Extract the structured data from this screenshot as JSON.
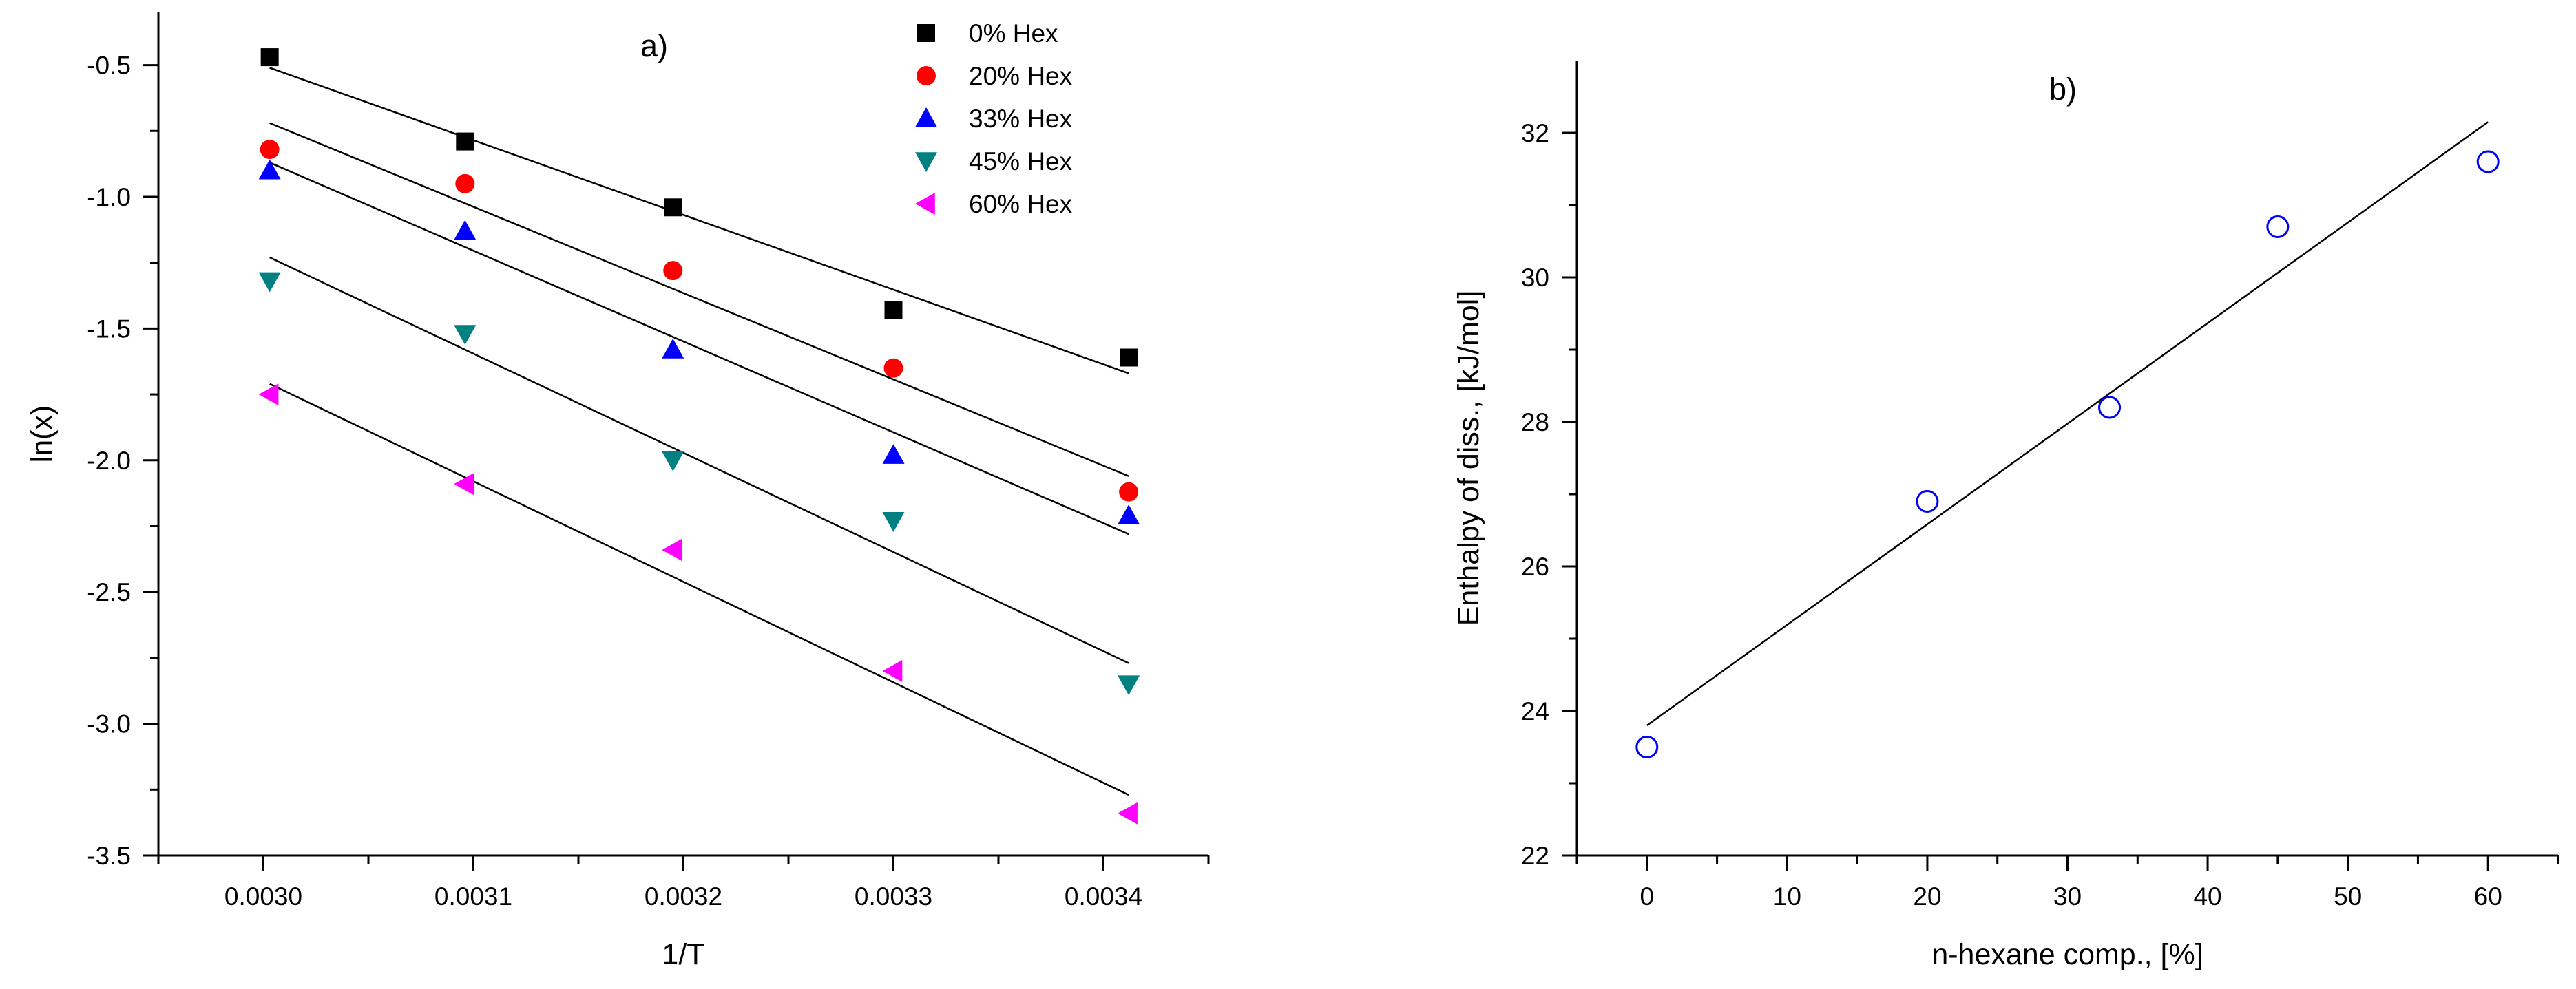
{
  "chart_data": [
    {
      "type": "scatter",
      "panel_label": "a)",
      "xlabel": "1/T",
      "ylabel": "ln(x)",
      "xlim": [
        0.00295,
        0.00345
      ],
      "ylim": [
        -3.5,
        -0.3
      ],
      "xticks": [
        "0.0030",
        "0.0031",
        "0.0032",
        "0.0033",
        "0.0034"
      ],
      "xtick_values": [
        0.003,
        0.0031,
        0.0032,
        0.0033,
        0.0034
      ],
      "yticks": [
        "-0.5",
        "-1.0",
        "-1.5",
        "-2.0",
        "-2.5",
        "-3.0",
        "-3.5"
      ],
      "ytick_values": [
        -0.5,
        -1.0,
        -1.5,
        -2.0,
        -2.5,
        -3.0,
        -3.5
      ],
      "legend_position": "top-right",
      "x": [
        0.003003,
        0.003096,
        0.003195,
        0.0033,
        0.003412
      ],
      "series": [
        {
          "name": "0% Hex",
          "marker": "square",
          "color": "#000000",
          "values": [
            -0.47,
            -0.79,
            -1.04,
            -1.43,
            -1.61
          ],
          "fit": [
            [
              0.003003,
              -0.51
            ],
            [
              0.003412,
              -1.67
            ]
          ]
        },
        {
          "name": "20% Hex",
          "marker": "circle",
          "color": "#ff0000",
          "values": [
            -0.82,
            -0.95,
            -1.28,
            -1.65,
            -2.12
          ],
          "fit": [
            [
              0.003003,
              -0.72
            ],
            [
              0.003412,
              -2.06
            ]
          ]
        },
        {
          "name": "33% Hex",
          "marker": "triangle-up",
          "color": "#0000ff",
          "values": [
            -0.9,
            -1.13,
            -1.58,
            -1.98,
            -2.21
          ],
          "fit": [
            [
              0.003003,
              -0.87
            ],
            [
              0.003412,
              -2.28
            ]
          ]
        },
        {
          "name": "45% Hex",
          "marker": "triangle-down",
          "color": "#008080",
          "values": [
            -1.32,
            -1.52,
            -2.0,
            -2.23,
            -2.85
          ],
          "fit": [
            [
              0.003003,
              -1.23
            ],
            [
              0.003412,
              -2.77
            ]
          ]
        },
        {
          "name": "60% Hex",
          "marker": "triangle-left",
          "color": "#ff00ff",
          "values": [
            -1.75,
            -2.09,
            -2.34,
            -2.8,
            -3.34
          ],
          "fit": [
            [
              0.003003,
              -1.71
            ],
            [
              0.003412,
              -3.27
            ]
          ]
        }
      ]
    },
    {
      "type": "scatter",
      "panel_label": "b)",
      "xlabel": "n-hexane comp., [%]",
      "ylabel": "Enthalpy of diss., [kJ/mol]",
      "xlim": [
        -5,
        65
      ],
      "ylim": [
        22,
        33
      ],
      "xticks": [
        "0",
        "10",
        "20",
        "30",
        "40",
        "50",
        "60"
      ],
      "xtick_values": [
        0,
        10,
        20,
        30,
        40,
        50,
        60
      ],
      "yticks": [
        "22",
        "24",
        "26",
        "28",
        "30",
        "32"
      ],
      "ytick_values": [
        22,
        24,
        26,
        28,
        30,
        32
      ],
      "series": [
        {
          "name": "Enthalpy",
          "marker": "open-circle",
          "color": "#0000ff",
          "x": [
            0,
            20,
            33,
            45,
            60
          ],
          "values": [
            23.5,
            26.9,
            28.2,
            30.7,
            31.6
          ],
          "fit": [
            [
              0,
              23.8
            ],
            [
              60,
              32.15
            ]
          ]
        }
      ]
    }
  ]
}
